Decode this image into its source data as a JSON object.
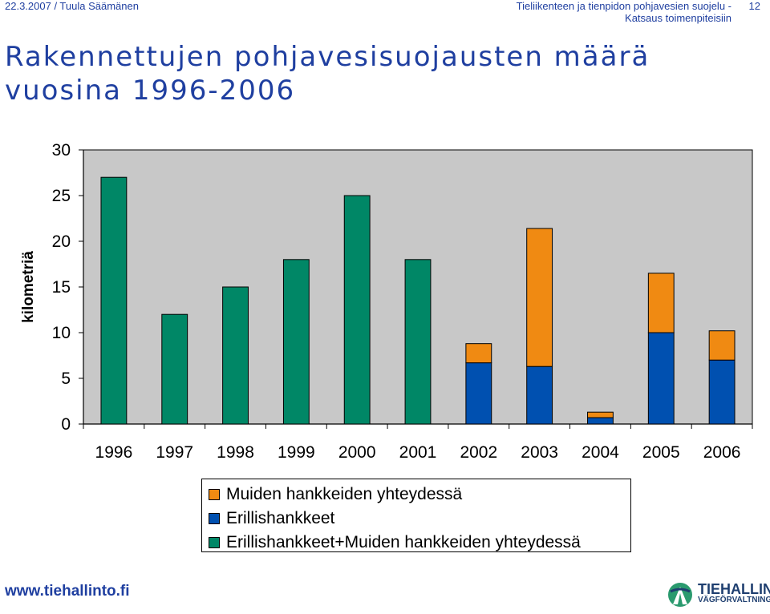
{
  "header": {
    "left": "22.3.2007 / Tuula Säämänen",
    "right_line1": "Tieliikenteen ja tienpidon pohjavesien suojelu -",
    "right_line2": "Katsaus toimenpiteisiin",
    "page_number": "12"
  },
  "title_line1": "Rakennettujen pohjavesisuojausten määrä",
  "title_line2": "vuosina 1996-2006",
  "colors": {
    "green": "#008766",
    "blue": "#0050b0",
    "orange": "#f08a12",
    "plot_bg": "#c8c8c8",
    "title": "#1f3fa0"
  },
  "chart_data": {
    "type": "bar",
    "stacked": true,
    "title": "Rakennettujen pohjavesisuojausten määrä vuosina 1996-2006",
    "xlabel": "",
    "ylabel": "kilometriä",
    "ylim": [
      0,
      30
    ],
    "yticks": [
      0,
      5,
      10,
      15,
      20,
      25,
      30
    ],
    "grid": false,
    "legend_position": "bottom",
    "categories": [
      "1996",
      "1997",
      "1998",
      "1999",
      "2000",
      "2001",
      "2002",
      "2003",
      "2004",
      "2005",
      "2006"
    ],
    "series": [
      {
        "name": "Erillishankkeet+Muiden hankkeiden yhteydessä",
        "color": "#008766",
        "values": [
          27,
          12,
          15,
          18,
          25,
          18,
          0,
          0,
          0,
          0,
          0
        ]
      },
      {
        "name": "Erillishankkeet",
        "color": "#0050b0",
        "values": [
          0,
          0,
          0,
          0,
          0,
          0,
          6.7,
          6.3,
          0.7,
          10,
          7
        ]
      },
      {
        "name": "Muiden hankkeiden yhteydessä",
        "color": "#f08a12",
        "values": [
          0,
          0,
          0,
          0,
          0,
          0,
          2.1,
          15.1,
          0.6,
          6.5,
          3.2
        ]
      }
    ],
    "legend": [
      {
        "label": "Muiden hankkeiden yhteydessä",
        "color": "#f08a12"
      },
      {
        "label": "Erillishankkeet",
        "color": "#0050b0"
      },
      {
        "label": "Erillishankkeet+Muiden hankkeiden yhteydessä",
        "color": "#008766"
      }
    ]
  },
  "footer": {
    "url": "www.tiehallinto.fi",
    "logo_main": "TIEHALLINTO",
    "logo_sub": "VÄGFÖRVALTNINGEN"
  }
}
